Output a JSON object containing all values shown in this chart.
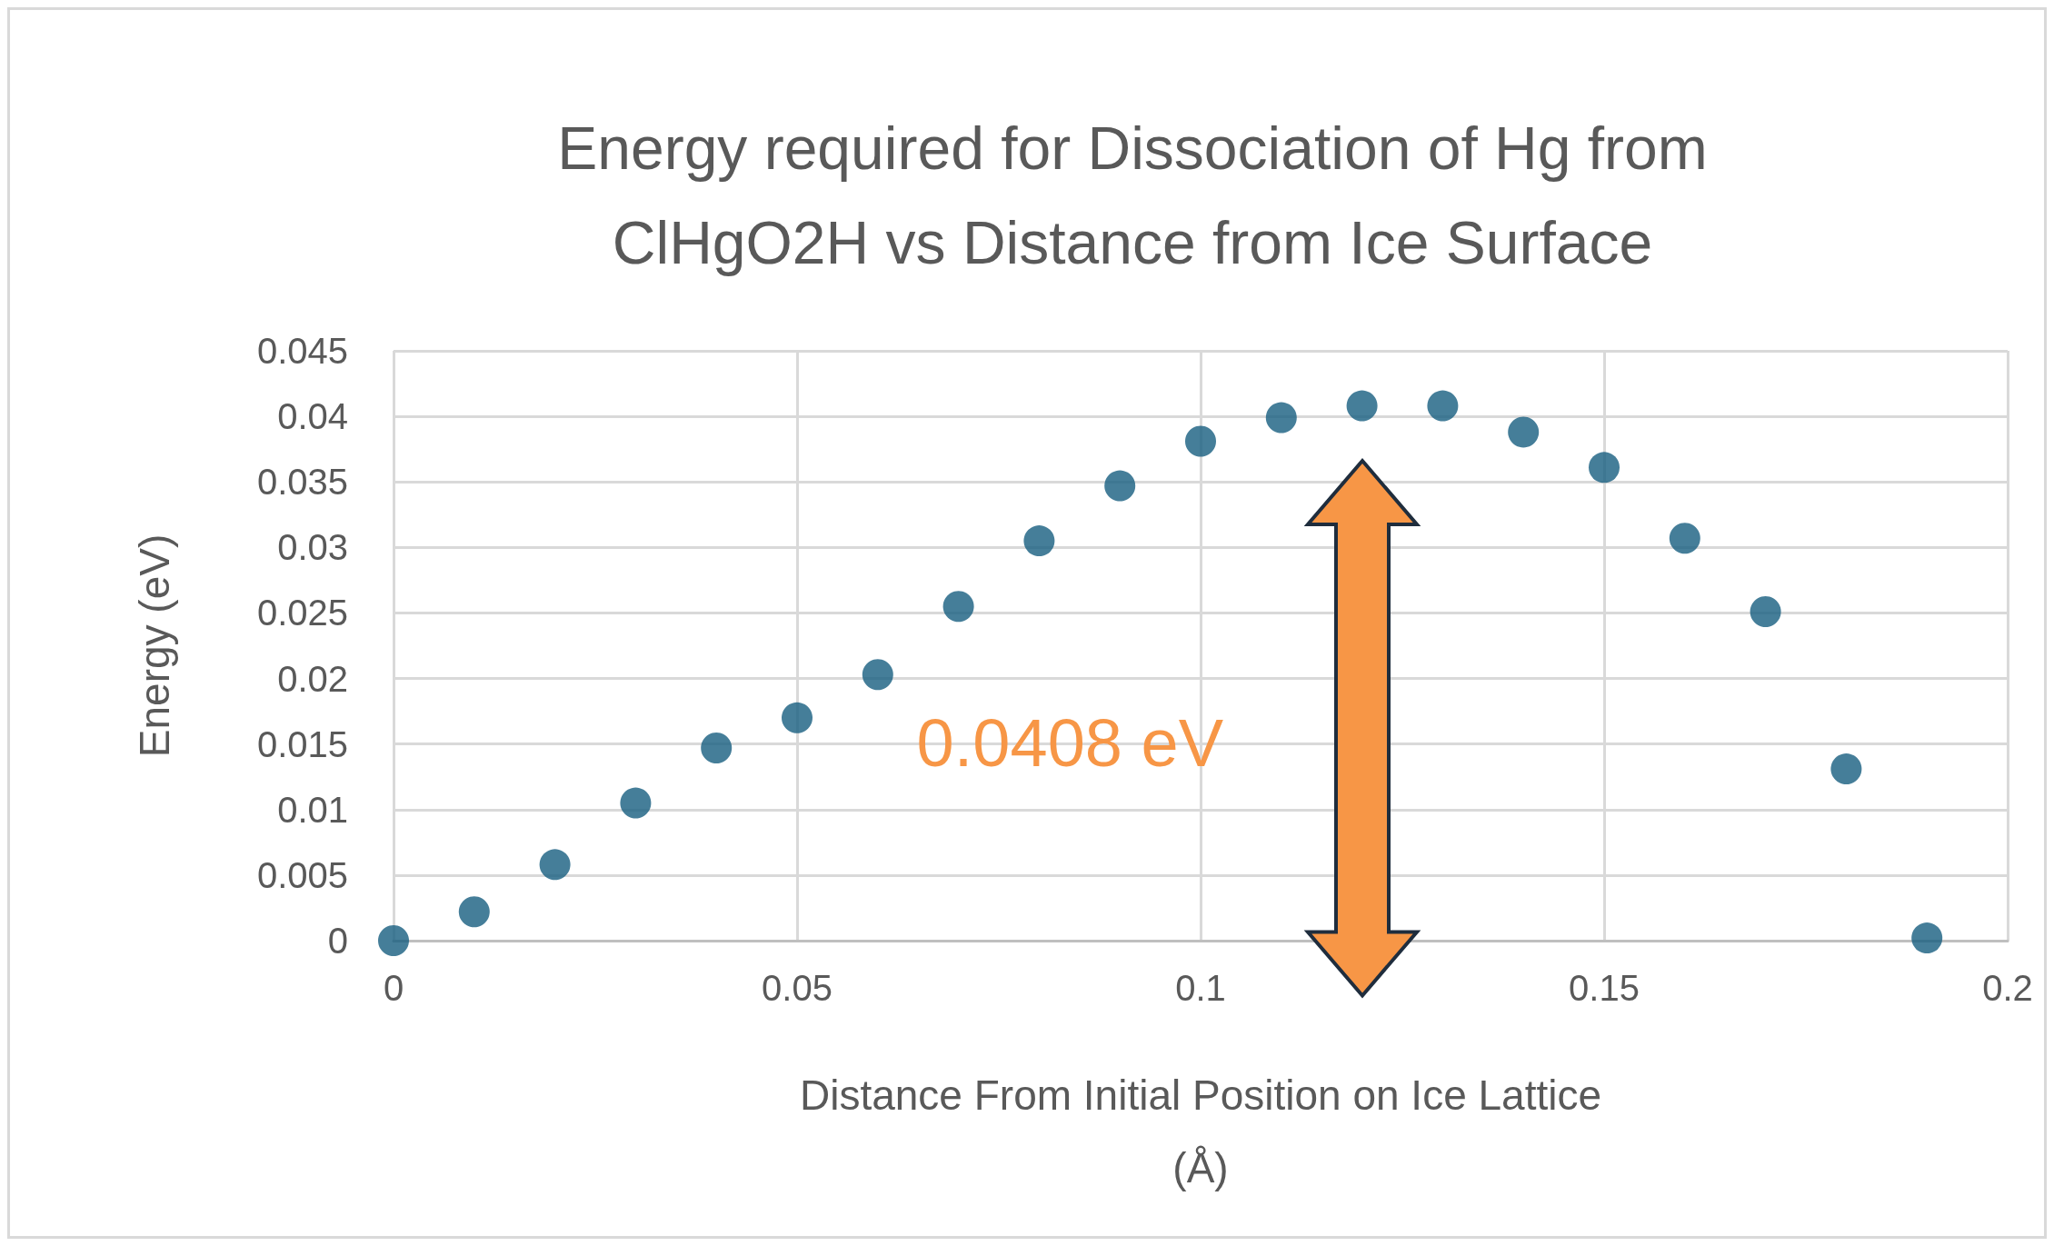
{
  "chart_data": {
    "type": "scatter",
    "title": "Energy required for Dissociation of Hg from\nClHgO2H vs Distance from Ice Surface",
    "xlabel": "Distance From Initial Position on Ice Lattice\n(Å)",
    "ylabel": "Energy (eV)",
    "x": [
      0,
      0.01,
      0.02,
      0.03,
      0.04,
      0.05,
      0.06,
      0.07,
      0.08,
      0.09,
      0.1,
      0.11,
      0.12,
      0.13,
      0.14,
      0.15,
      0.16,
      0.17,
      0.18,
      0.19
    ],
    "series": [
      {
        "color": "#175e7f",
        "values": [
          0,
          0.0022,
          0.0058,
          0.0105,
          0.0147,
          0.017,
          0.0203,
          0.0255,
          0.0305,
          0.0347,
          0.0381,
          0.0399,
          0.0408,
          0.0408,
          0.0388,
          0.0361,
          0.0307,
          0.0251,
          0.0131,
          0.0002
        ]
      }
    ],
    "xlim": [
      0,
      0.2
    ],
    "xticks": [
      0,
      0.05,
      0.1,
      0.15,
      0.2
    ],
    "ylim": [
      0,
      0.045
    ],
    "yticks": [
      0,
      0.005,
      0.01,
      0.015,
      0.02,
      0.025,
      0.03,
      0.035,
      0.04,
      0.045
    ],
    "grid": true,
    "marker": "circle",
    "annotations": [
      "0.0408 eV"
    ]
  }
}
